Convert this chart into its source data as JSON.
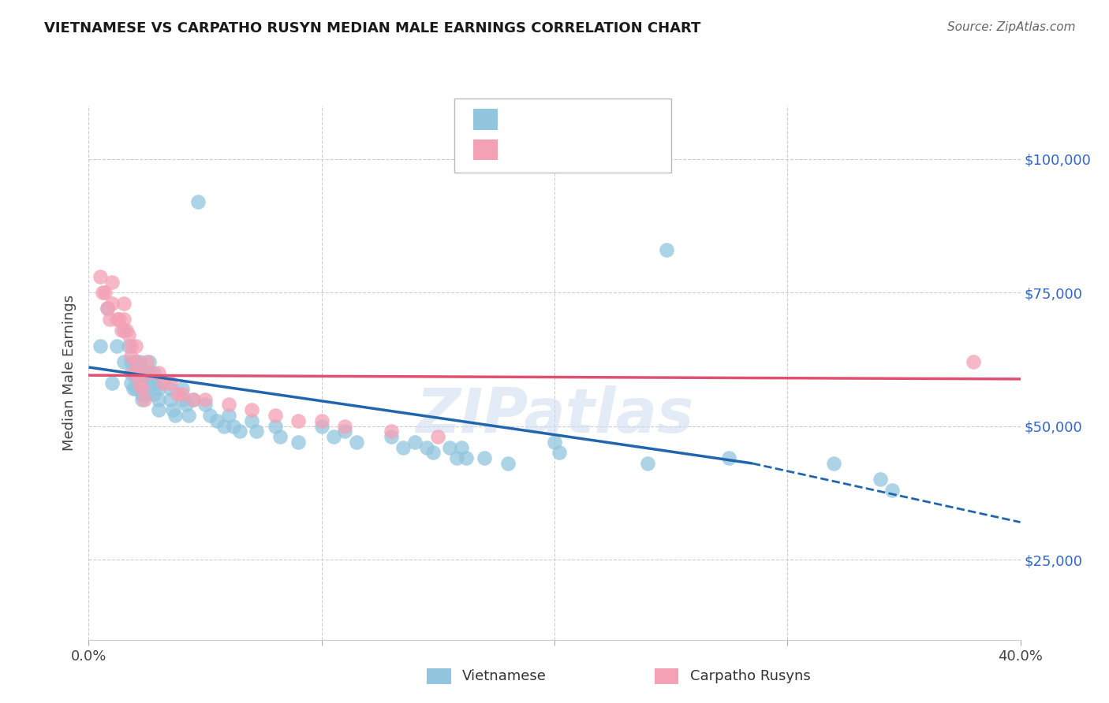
{
  "title": "VIETNAMESE VS CARPATHO RUSYN MEDIAN MALE EARNINGS CORRELATION CHART",
  "source": "Source: ZipAtlas.com",
  "ylabel": "Median Male Earnings",
  "xlim": [
    0.0,
    0.4
  ],
  "ylim": [
    10000,
    110000
  ],
  "yticks": [
    25000,
    50000,
    75000,
    100000
  ],
  "ytick_labels": [
    "$25,000",
    "$50,000",
    "$75,000",
    "$100,000"
  ],
  "xticks": [
    0.0,
    0.1,
    0.2,
    0.3,
    0.4
  ],
  "xtick_labels": [
    "0.0%",
    "",
    "",
    "",
    "40.0%"
  ],
  "blue_color": "#92c5de",
  "pink_color": "#f4a0b5",
  "trend_blue_color": "#2166ac",
  "trend_pink_color": "#e05070",
  "watermark": "ZIPatlas",
  "blue_x": [
    0.005,
    0.008,
    0.01,
    0.012,
    0.015,
    0.015,
    0.017,
    0.018,
    0.018,
    0.018,
    0.019,
    0.02,
    0.02,
    0.02,
    0.022,
    0.022,
    0.022,
    0.023,
    0.023,
    0.023,
    0.025,
    0.025,
    0.025,
    0.026,
    0.028,
    0.028,
    0.028,
    0.03,
    0.03,
    0.03,
    0.03,
    0.035,
    0.035,
    0.036,
    0.037,
    0.04,
    0.04,
    0.042,
    0.043,
    0.045,
    0.05,
    0.052,
    0.055,
    0.058,
    0.06,
    0.062,
    0.065,
    0.07,
    0.072,
    0.08,
    0.082,
    0.09,
    0.1,
    0.105,
    0.11,
    0.115,
    0.13,
    0.135,
    0.14,
    0.145,
    0.148,
    0.155,
    0.158,
    0.16,
    0.162,
    0.17,
    0.18,
    0.2,
    0.202,
    0.24,
    0.275,
    0.32,
    0.34,
    0.345,
    0.047,
    0.248
  ],
  "blue_y": [
    65000,
    72000,
    58000,
    65000,
    68000,
    62000,
    65000,
    62000,
    60000,
    58000,
    57000,
    62000,
    59000,
    57000,
    62000,
    60000,
    58000,
    58000,
    56000,
    55000,
    60000,
    58000,
    56000,
    62000,
    60000,
    58000,
    56000,
    58000,
    57000,
    55000,
    53000,
    57000,
    55000,
    53000,
    52000,
    57000,
    55000,
    54000,
    52000,
    55000,
    54000,
    52000,
    51000,
    50000,
    52000,
    50000,
    49000,
    51000,
    49000,
    50000,
    48000,
    47000,
    50000,
    48000,
    49000,
    47000,
    48000,
    46000,
    47000,
    46000,
    45000,
    46000,
    44000,
    46000,
    44000,
    44000,
    43000,
    47000,
    45000,
    43000,
    44000,
    43000,
    40000,
    38000,
    92000,
    83000
  ],
  "pink_x": [
    0.005,
    0.006,
    0.007,
    0.008,
    0.009,
    0.01,
    0.01,
    0.012,
    0.013,
    0.014,
    0.015,
    0.015,
    0.016,
    0.017,
    0.018,
    0.018,
    0.019,
    0.02,
    0.02,
    0.021,
    0.022,
    0.023,
    0.024,
    0.025,
    0.026,
    0.03,
    0.032,
    0.035,
    0.038,
    0.04,
    0.045,
    0.05,
    0.06,
    0.07,
    0.08,
    0.09,
    0.1,
    0.11,
    0.13,
    0.15,
    0.38
  ],
  "pink_y": [
    78000,
    75000,
    75000,
    72000,
    70000,
    77000,
    73000,
    70000,
    70000,
    68000,
    73000,
    70000,
    68000,
    67000,
    65000,
    63000,
    60000,
    65000,
    62000,
    60000,
    58000,
    57000,
    55000,
    62000,
    60000,
    60000,
    58000,
    58000,
    56000,
    56000,
    55000,
    55000,
    54000,
    53000,
    52000,
    51000,
    51000,
    50000,
    49000,
    48000,
    62000
  ],
  "blue_trend_x0": 0.0,
  "blue_trend_y0": 61000,
  "blue_trend_x1": 0.285,
  "blue_trend_y1": 43000,
  "blue_trend_ext_x1": 0.4,
  "blue_trend_ext_y1": 32000,
  "pink_trend_x0": 0.0,
  "pink_trend_y0": 59500,
  "pink_trend_x1": 0.4,
  "pink_trend_y1": 58800
}
